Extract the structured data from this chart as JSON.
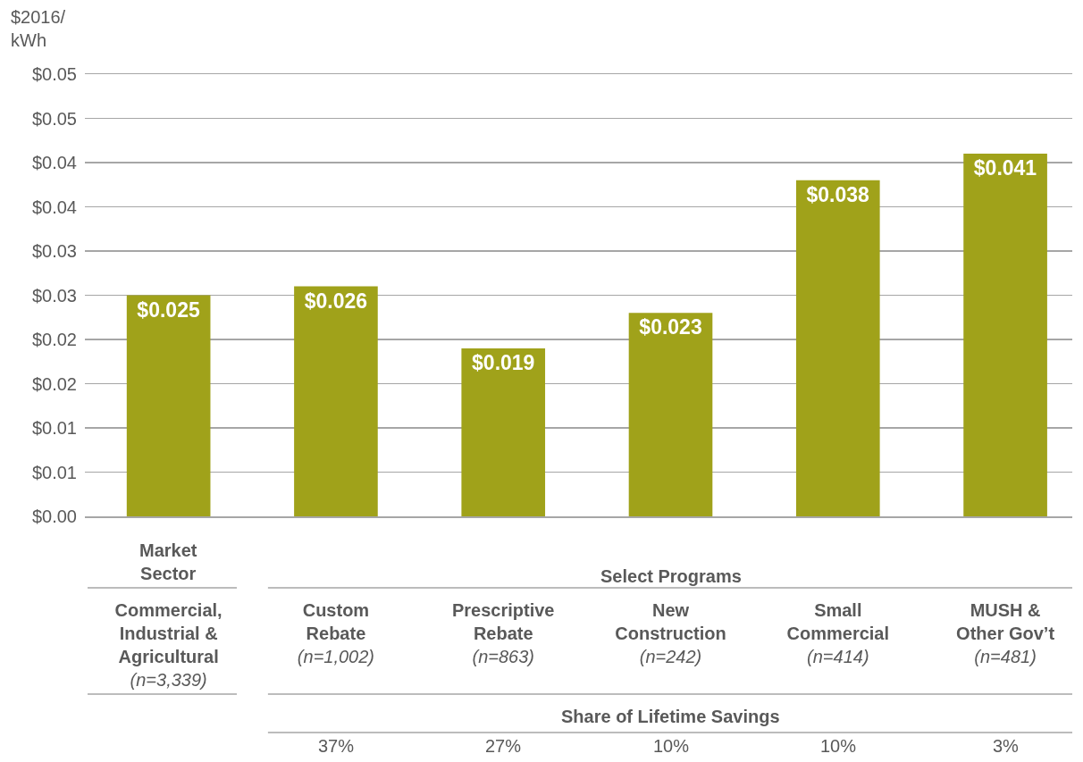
{
  "chart_data": {
    "type": "bar",
    "ylabel": "$2016/\nkWh",
    "categories": [
      "Commercial,\nIndustrial &\nAgricultural\n(n=3,339)",
      "Custom\nRebate\n(n=1,002)",
      "Prescriptive\nRebate\n(n=863)",
      "New\nConstruction\n(n=242)",
      "Small\nCommercial\n(n=414)",
      "MUSH &\nOther Gov’t\n(n=481)"
    ],
    "values": [
      0.025,
      0.026,
      0.019,
      0.023,
      0.038,
      0.041
    ],
    "value_labels": [
      "$0.025",
      "$0.026",
      "$0.019",
      "$0.023",
      "$0.038",
      "$0.041"
    ],
    "color": "#a0a21a",
    "ylim": [
      0,
      0.05
    ],
    "yticks": [
      {
        "value": 0,
        "label": "$0.00"
      },
      {
        "value": 0.005,
        "label": "$0.01"
      },
      {
        "value": 0.01,
        "label": "$0.01"
      },
      {
        "value": 0.015,
        "label": "$0.02"
      },
      {
        "value": 0.02,
        "label": "$0.02"
      },
      {
        "value": 0.025,
        "label": "$0.03"
      },
      {
        "value": 0.03,
        "label": "$0.03"
      },
      {
        "value": 0.035,
        "label": "$0.04"
      },
      {
        "value": 0.04,
        "label": "$0.04"
      },
      {
        "value": 0.045,
        "label": "$0.05"
      },
      {
        "value": 0.05,
        "label": "$0.05"
      }
    ],
    "grid": "y",
    "annotations": [
      "Market\nSector",
      "Select Programs",
      "Share of Lifetime Savings",
      "37%",
      "27%",
      "10%",
      "10%",
      "3%"
    ]
  }
}
